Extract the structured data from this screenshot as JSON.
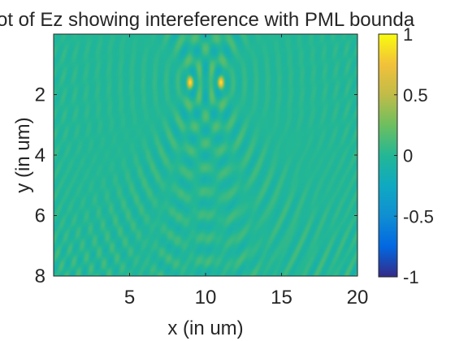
{
  "chart_data": {
    "type": "heatmap",
    "title": "ot of Ez showing intereference with PML bounda",
    "xlabel": "x (in um)",
    "ylabel": "y (in um)",
    "xlim": [
      0,
      20
    ],
    "ylim": [
      0,
      8
    ],
    "y_direction": "reversed",
    "x_ticks": [
      5,
      10,
      15,
      20
    ],
    "y_ticks": [
      2,
      4,
      6,
      8
    ],
    "colorbar": {
      "min": -1,
      "max": 1,
      "ticks": [
        1,
        0.5,
        0,
        -0.5,
        -1
      ],
      "colormap": "parula"
    },
    "sources": [
      {
        "x": 9,
        "y": 1.6,
        "value": 1
      },
      {
        "x": 11,
        "y": 1.6,
        "value": 1
      }
    ],
    "background_value": 0,
    "grid": false
  }
}
